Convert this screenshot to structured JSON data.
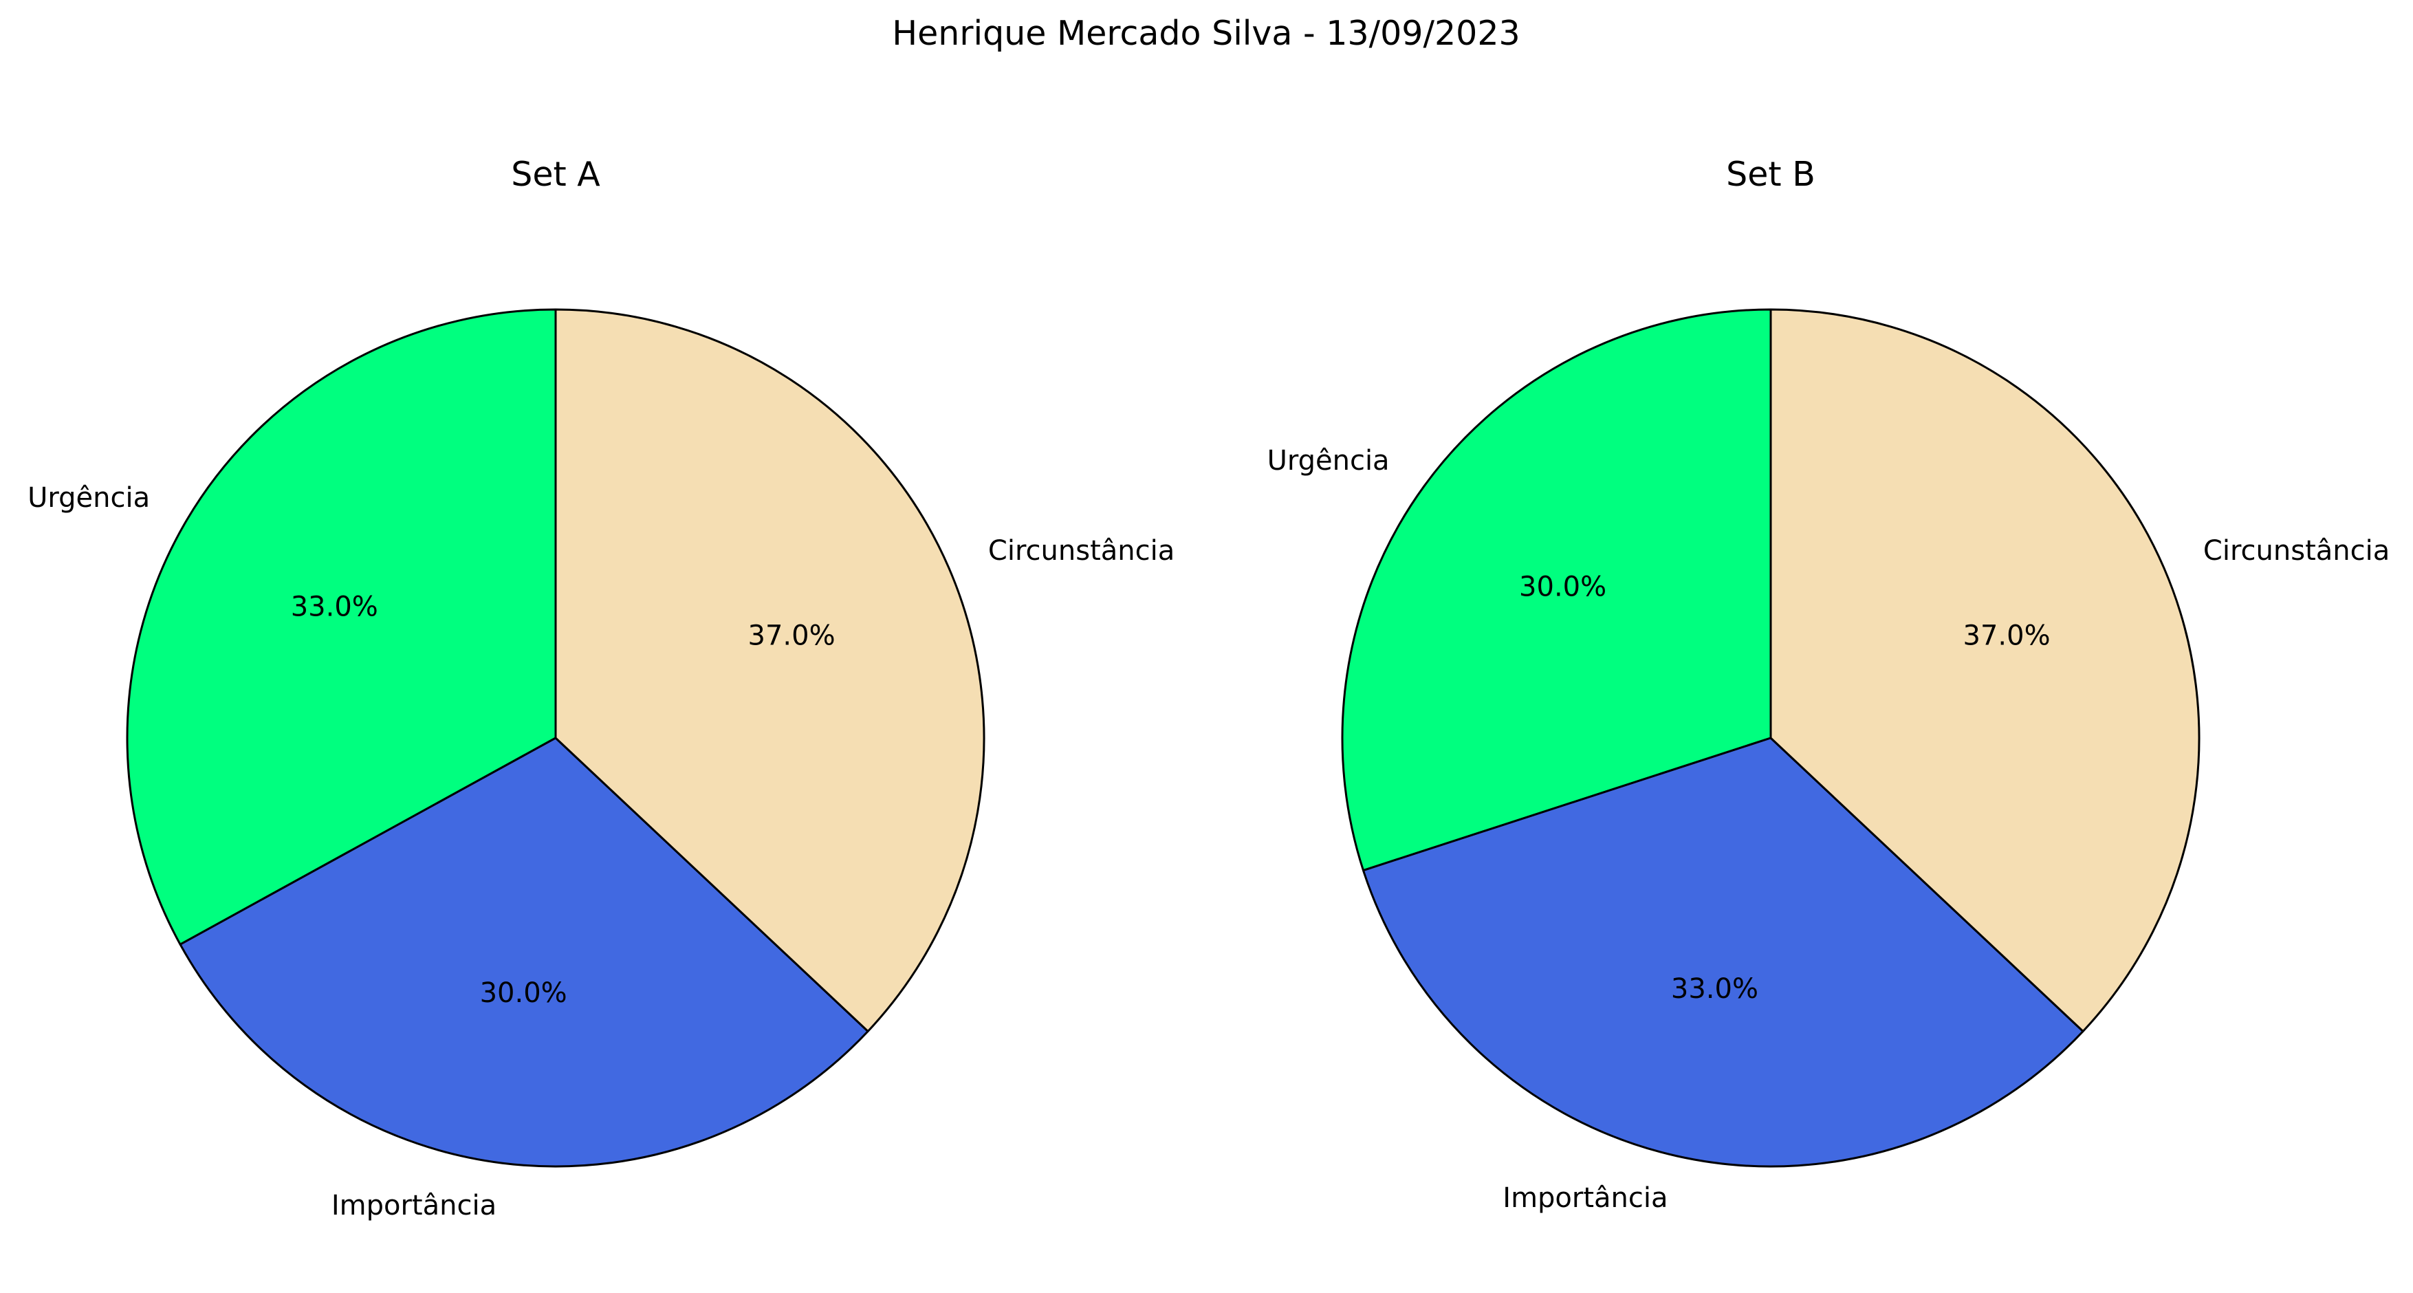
{
  "figure_title": "Henrique Mercado Silva - 13/09/2023",
  "chart_data": [
    {
      "type": "pie",
      "title": "Set A",
      "categories": [
        "Urgência",
        "Importância",
        "Circunstância"
      ],
      "values": [
        33.0,
        30.0,
        37.0
      ],
      "labels": [
        "33.0%",
        "30.0%",
        "37.0%"
      ],
      "colors": [
        "#00FF7F",
        "#4169E1",
        "#F5DEB3"
      ],
      "edge_color": "#000000",
      "start_angle_deg": 90,
      "direction": "counterclockwise"
    },
    {
      "type": "pie",
      "title": "Set B",
      "categories": [
        "Urgência",
        "Importância",
        "Circunstância"
      ],
      "values": [
        30.0,
        33.0,
        37.0
      ],
      "labels": [
        "30.0%",
        "33.0%",
        "37.0%"
      ],
      "colors": [
        "#00FF7F",
        "#4169E1",
        "#F5DEB3"
      ],
      "edge_color": "#000000",
      "start_angle_deg": 90,
      "direction": "counterclockwise"
    }
  ]
}
